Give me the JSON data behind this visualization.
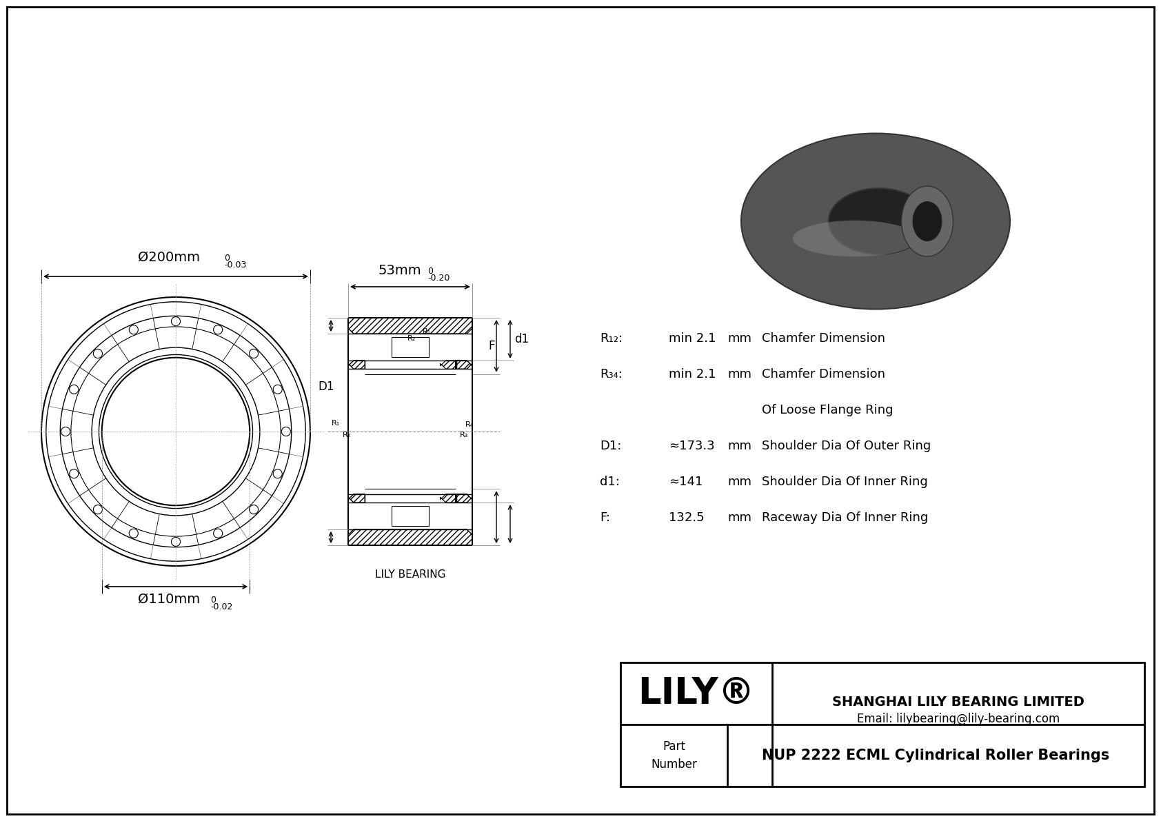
{
  "bg_color": "#ffffff",
  "border_color": "#000000",
  "line_color": "#000000",
  "dim_color": "#555555",
  "title": "",
  "outer_diameter_label": "Ø200mm",
  "outer_diameter_tol": "-0.03",
  "inner_diameter_label": "Ø110mm",
  "inner_diameter_tol": "-0.02",
  "width_label": "53mm",
  "width_tol": "-0.20",
  "params": [
    {
      "name": "R₁₂:",
      "value": "min 2.1",
      "unit": "mm",
      "desc": "Chamfer Dimension"
    },
    {
      "name": "R₃₄:",
      "value": "min 2.1",
      "unit": "mm",
      "desc": "Chamfer Dimension"
    },
    {
      "name": "",
      "value": "",
      "unit": "",
      "desc": "Of Loose Flange Ring"
    },
    {
      "name": "D1:",
      "value": "≈173.3",
      "unit": "mm",
      "desc": "Shoulder Dia Of Outer Ring"
    },
    {
      "name": "d1:",
      "value": "≈141",
      "unit": "mm",
      "desc": "Shoulder Dia Of Inner Ring"
    },
    {
      "name": "F:",
      "value": "132.5",
      "unit": "mm",
      "desc": "Raceway Dia Of Inner Ring"
    }
  ],
  "company": "SHANGHAI LILY BEARING LIMITED",
  "email": "Email: lilybearing@lily-bearing.com",
  "part_label": "Part\nNumber",
  "part_number": "NUP 2222 ECML Cylindrical Roller Bearings",
  "lily_label": "LILY®",
  "lily_bearing_label": "LILY BEARING"
}
